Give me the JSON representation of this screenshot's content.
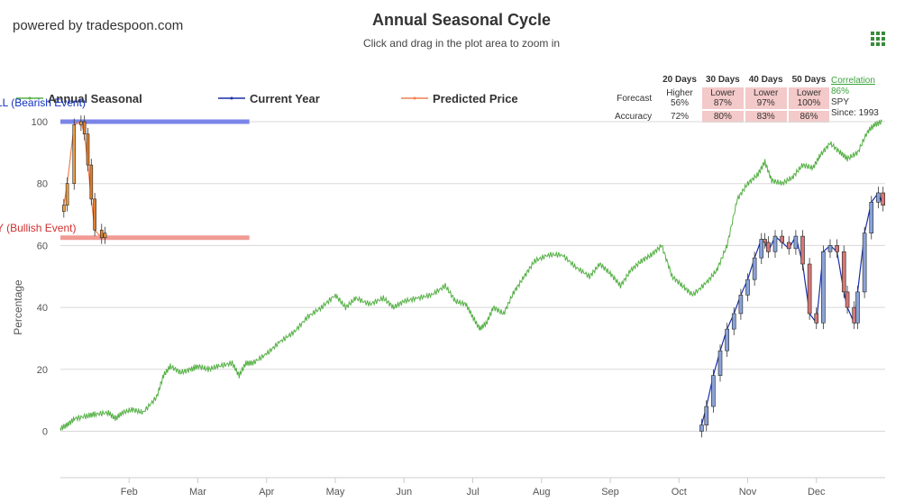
{
  "brand": "powered by tradespoon.com",
  "title": "Annual Seasonal Cycle",
  "subtitle": "Click and drag in the plot area to zoom in",
  "menu_icon": "grid-menu-icon",
  "legend": [
    {
      "name": "Annual Seasonal",
      "color": "#55b045"
    },
    {
      "name": "Current Year",
      "color": "#1a2fa8"
    },
    {
      "name": "Predicted Price",
      "color": "#f08050"
    }
  ],
  "forecast_table": {
    "headers": [
      "20 Days",
      "30 Days",
      "40 Days",
      "50 Days"
    ],
    "forecast_label": "Forecast",
    "forecast": [
      {
        "dir": "Higher",
        "pct": "56%"
      },
      {
        "dir": "Lower",
        "pct": "87%"
      },
      {
        "dir": "Lower",
        "pct": "97%"
      },
      {
        "dir": "Lower",
        "pct": "100%"
      }
    ],
    "accuracy_label": "Accuracy",
    "accuracy": [
      "72%",
      "80%",
      "83%",
      "86%"
    ]
  },
  "correlation": {
    "label": "Correlation",
    "value": "86%",
    "symbol": "SPY",
    "since": "Since: 1993"
  },
  "colors": {
    "seasonal": "#55b045",
    "current": "#1a2fa8",
    "predicted": "#f08050",
    "sell_band": "#7b86e8",
    "buy_band": "#f09a94",
    "candle_up": "#8aa3d8",
    "candle_down": "#d47777"
  },
  "chart_data": {
    "type": "line",
    "ylabel": "Percentage",
    "ylim": [
      -15,
      100
    ],
    "yticks": [
      0,
      20,
      40,
      60,
      80,
      100
    ],
    "x_months": [
      "Feb",
      "Mar",
      "Apr",
      "May",
      "Jun",
      "Jul",
      "Aug",
      "Sep",
      "Oct",
      "Nov",
      "Dec"
    ],
    "bands": [
      {
        "label": "LL (Bearish Event)",
        "y": 100,
        "x_end_month": 3.75
      },
      {
        "label": "Y (Bullish Event)",
        "y": 62.5,
        "x_end_month": 3.75
      }
    ],
    "series": [
      {
        "name": "Annual Seasonal",
        "points": [
          [
            1.0,
            1
          ],
          [
            1.1,
            2
          ],
          [
            1.2,
            4
          ],
          [
            1.4,
            5
          ],
          [
            1.5,
            5.5
          ],
          [
            1.7,
            6
          ],
          [
            1.8,
            4
          ],
          [
            1.9,
            6
          ],
          [
            2.05,
            7
          ],
          [
            2.2,
            6
          ],
          [
            2.4,
            11
          ],
          [
            2.5,
            18
          ],
          [
            2.6,
            21
          ],
          [
            2.75,
            19
          ],
          [
            2.9,
            20
          ],
          [
            3.0,
            21
          ],
          [
            3.15,
            20
          ],
          [
            3.3,
            21
          ],
          [
            3.5,
            22
          ],
          [
            3.6,
            18
          ],
          [
            3.7,
            22
          ],
          [
            3.8,
            22
          ],
          [
            4.0,
            25
          ],
          [
            4.2,
            29
          ],
          [
            4.4,
            32
          ],
          [
            4.6,
            37
          ],
          [
            4.8,
            40
          ],
          [
            5.0,
            44
          ],
          [
            5.15,
            40
          ],
          [
            5.3,
            43
          ],
          [
            5.5,
            41
          ],
          [
            5.7,
            43
          ],
          [
            5.85,
            40
          ],
          [
            6.0,
            42
          ],
          [
            6.2,
            43
          ],
          [
            6.4,
            44
          ],
          [
            6.6,
            47
          ],
          [
            6.75,
            42
          ],
          [
            6.9,
            41
          ],
          [
            7.0,
            37
          ],
          [
            7.1,
            33
          ],
          [
            7.2,
            35
          ],
          [
            7.3,
            40
          ],
          [
            7.45,
            38
          ],
          [
            7.6,
            45
          ],
          [
            7.75,
            50
          ],
          [
            7.9,
            55
          ],
          [
            8.1,
            57
          ],
          [
            8.3,
            57
          ],
          [
            8.5,
            53
          ],
          [
            8.7,
            50
          ],
          [
            8.85,
            54
          ],
          [
            9.0,
            51
          ],
          [
            9.15,
            47
          ],
          [
            9.3,
            52
          ],
          [
            9.45,
            55
          ],
          [
            9.6,
            57
          ],
          [
            9.75,
            60
          ],
          [
            9.9,
            50
          ],
          [
            10.05,
            47
          ],
          [
            10.2,
            44
          ],
          [
            10.4,
            48
          ],
          [
            10.55,
            52
          ],
          [
            10.7,
            60
          ],
          [
            10.85,
            75
          ],
          [
            11.0,
            80
          ],
          [
            11.15,
            83
          ],
          [
            11.25,
            87
          ],
          [
            11.35,
            81
          ],
          [
            11.5,
            80
          ],
          [
            11.65,
            82
          ],
          [
            11.8,
            86
          ],
          [
            11.95,
            85
          ],
          [
            12.05,
            89
          ],
          [
            12.2,
            93
          ],
          [
            12.35,
            90
          ],
          [
            12.45,
            88
          ],
          [
            12.6,
            90
          ],
          [
            12.75,
            97
          ],
          [
            12.85,
            99
          ],
          [
            12.95,
            100
          ]
        ]
      },
      {
        "name": "Current Year",
        "points": [
          [
            10.33,
            2
          ],
          [
            10.4,
            8
          ],
          [
            10.5,
            18
          ],
          [
            10.6,
            26
          ],
          [
            10.7,
            33
          ],
          [
            10.8,
            38
          ],
          [
            10.9,
            44
          ],
          [
            11.0,
            49
          ],
          [
            11.1,
            56
          ],
          [
            11.2,
            62
          ],
          [
            11.25,
            61
          ],
          [
            11.3,
            58
          ],
          [
            11.4,
            63
          ],
          [
            11.5,
            61
          ],
          [
            11.6,
            59
          ],
          [
            11.7,
            63
          ],
          [
            11.8,
            54
          ],
          [
            11.9,
            38
          ],
          [
            12.0,
            35
          ],
          [
            12.1,
            58
          ],
          [
            12.2,
            60
          ],
          [
            12.3,
            58
          ],
          [
            12.4,
            45
          ],
          [
            12.45,
            40
          ],
          [
            12.55,
            35
          ],
          [
            12.6,
            45
          ],
          [
            12.7,
            64
          ],
          [
            12.8,
            74
          ],
          [
            12.9,
            77
          ],
          [
            12.97,
            73
          ]
        ]
      },
      {
        "name": "Predicted Price",
        "points": [
          [
            1.05,
            73
          ],
          [
            1.1,
            80
          ],
          [
            1.2,
            99
          ],
          [
            1.3,
            100
          ],
          [
            1.35,
            96
          ],
          [
            1.4,
            86
          ],
          [
            1.45,
            75
          ],
          [
            1.5,
            65
          ],
          [
            1.6,
            62.5
          ],
          [
            1.65,
            64
          ]
        ]
      }
    ]
  }
}
